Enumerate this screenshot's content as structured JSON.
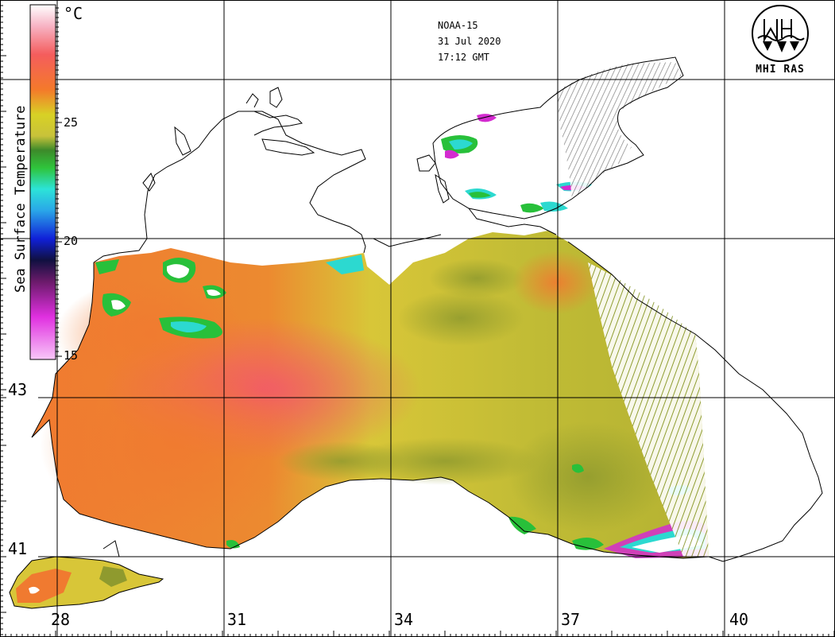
{
  "satellite": {
    "name": "NOAA-15",
    "date": "31 Jul 2020",
    "time": "17:12 GMT"
  },
  "logo": {
    "text": "MHI RAS"
  },
  "colorbar": {
    "title": "Sea Surface Temperature",
    "unit": "°C",
    "ticks": [
      "25",
      "20",
      "15"
    ]
  },
  "grid": {
    "longitude_labels": [
      "28",
      "31",
      "34",
      "37",
      "40"
    ],
    "latitude_labels": [
      "43",
      "41"
    ]
  },
  "colors": {
    "sea_warm": "#f07a30",
    "sea_hot": "#f25a56",
    "sea_mid": "#d8d13a",
    "sea_cool": "#b7b534",
    "sea_olive": "#8f9a2e",
    "cloud_green": "#28c03a",
    "cloud_cyan": "#2cd9d0",
    "cloud_magenta": "#d42bd0",
    "land": "#ffffff",
    "coast": "#000000"
  }
}
